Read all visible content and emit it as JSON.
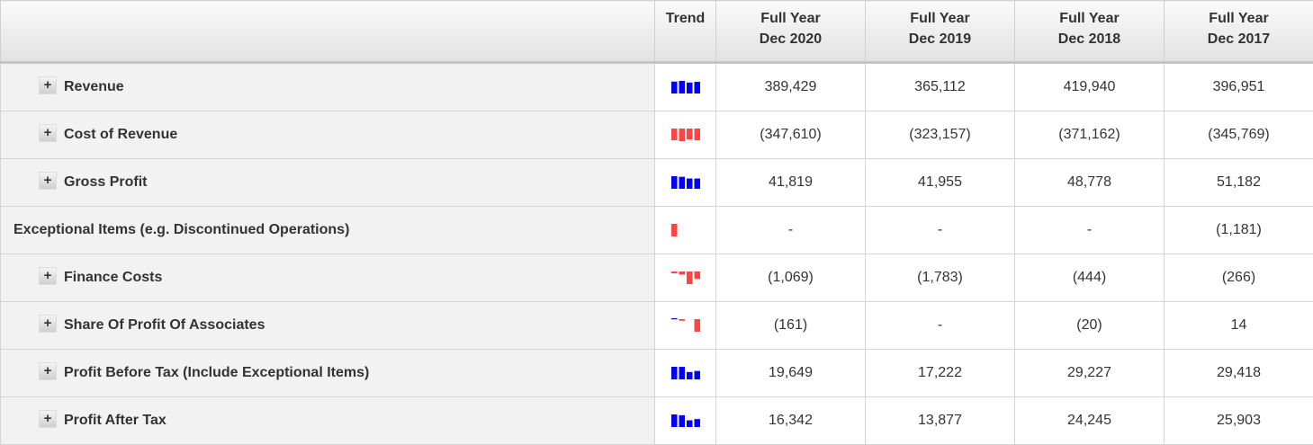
{
  "header": {
    "label": "",
    "trend": "Trend",
    "columns": [
      [
        "Full Year",
        "Dec 2020"
      ],
      [
        "Full Year",
        "Dec 2019"
      ],
      [
        "Full Year",
        "Dec 2018"
      ],
      [
        "Full Year",
        "Dec 2017"
      ]
    ]
  },
  "colors": {
    "positive": "#0000ff",
    "negative": "#ff4444"
  },
  "rows": [
    {
      "label": "Revenue",
      "expandable": true,
      "values": [
        "389,429",
        "365,112",
        "419,940",
        "396,951"
      ],
      "trend": [
        396951,
        419940,
        365112,
        389429
      ]
    },
    {
      "label": "Cost of Revenue",
      "expandable": true,
      "values": [
        "(347,610)",
        "(323,157)",
        "(371,162)",
        "(345,769)"
      ],
      "trend": [
        -345769,
        -371162,
        -323157,
        -347610
      ]
    },
    {
      "label": "Gross Profit",
      "expandable": true,
      "values": [
        "41,819",
        "41,955",
        "48,778",
        "51,182"
      ],
      "trend": [
        51182,
        48778,
        41955,
        41819
      ]
    },
    {
      "label": "Exceptional Items (e.g. Discontinued Operations)",
      "expandable": false,
      "values": [
        "-",
        "-",
        "-",
        "(1,181)"
      ],
      "trend": [
        -1181,
        0,
        0,
        0
      ]
    },
    {
      "label": "Finance Costs",
      "expandable": true,
      "values": [
        "(1,069)",
        "(1,783)",
        "(444)",
        "(266)"
      ],
      "trend": [
        -266,
        -444,
        -1783,
        -1069
      ]
    },
    {
      "label": "Share Of Profit Of Associates",
      "expandable": true,
      "values": [
        "(161)",
        "-",
        "(20)",
        "14"
      ],
      "trend": [
        14,
        -20,
        0,
        -161
      ]
    },
    {
      "label": "Profit Before Tax (Include Exceptional Items)",
      "expandable": true,
      "values": [
        "19,649",
        "17,222",
        "29,227",
        "29,418"
      ],
      "trend": [
        29418,
        29227,
        17222,
        19649
      ]
    },
    {
      "label": "Profit After Tax",
      "expandable": true,
      "values": [
        "16,342",
        "13,877",
        "24,245",
        "25,903"
      ],
      "trend": [
        25903,
        24245,
        13877,
        16342
      ]
    }
  ]
}
